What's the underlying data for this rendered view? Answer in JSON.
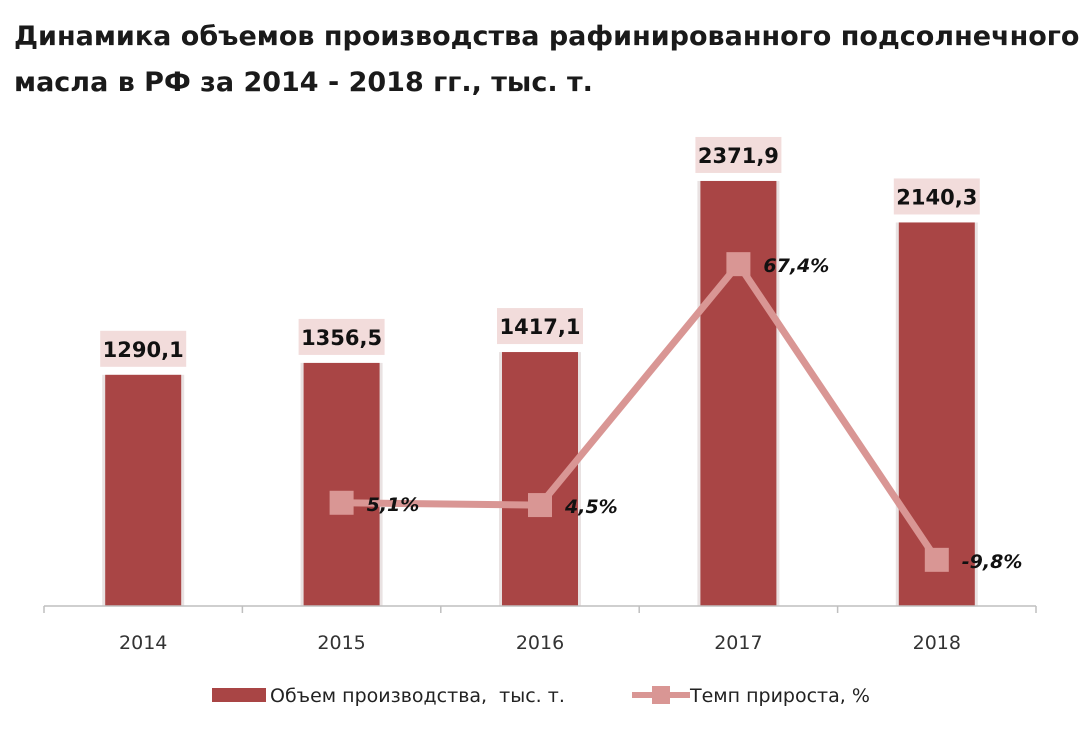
{
  "title_lines": [
    "Динамика объемов производства рафинированного подсолнечного",
    "масла в РФ за 2014 - 2018 гг., тыс. т."
  ],
  "colors": {
    "bar": "#a94545",
    "line": "#d99694",
    "label_bg": "#f2dcdb",
    "axis": "#bfbfbf"
  },
  "chart_data": {
    "type": "bar",
    "title": "Динамика объемов производства рафинированного подсолнечного масла в РФ за 2014 - 2018 гг., тыс. т.",
    "categories": [
      "2014",
      "2015",
      "2016",
      "2017",
      "2018"
    ],
    "series": [
      {
        "name": "Объем производства,  тыс. т.",
        "type": "bar",
        "values": [
          1290.1,
          1356.5,
          1417.1,
          2371.9,
          2140.3
        ],
        "labels": [
          "1290,1",
          "1356,5",
          "1417,1",
          "2371,9",
          "2140,3"
        ]
      },
      {
        "name": "Темп прироста, %",
        "type": "line",
        "values": [
          null,
          5.1,
          4.5,
          67.4,
          -9.8
        ],
        "labels": [
          "",
          "5,1%",
          "4,5%",
          "67,4%",
          "-9,8%"
        ]
      }
    ],
    "ylim": [
      0,
      2500
    ],
    "y2lim": [
      -20,
      80
    ],
    "grid": false,
    "legend": "bottom"
  }
}
